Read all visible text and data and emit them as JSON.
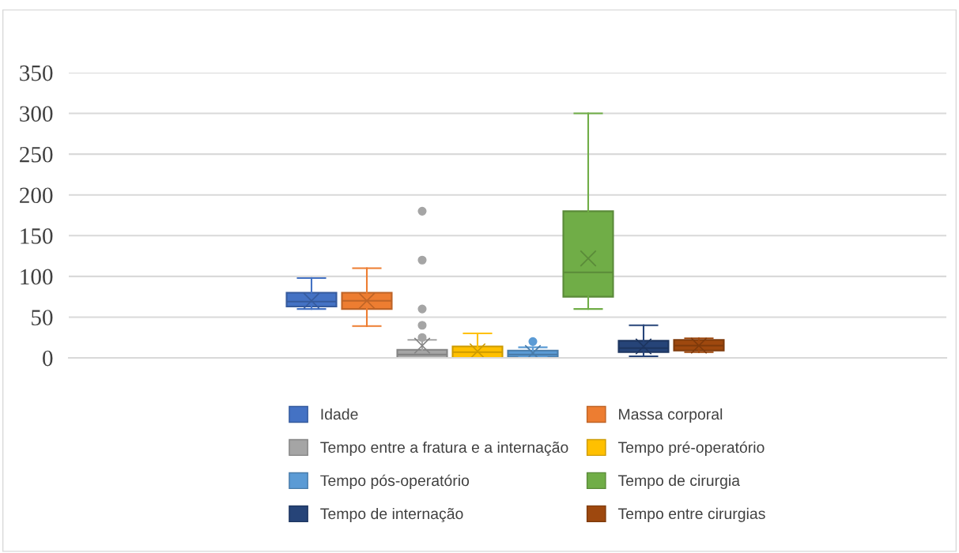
{
  "chart_data": {
    "type": "box",
    "categories": [
      null
    ],
    "ylim": [
      0,
      350
    ],
    "yticks": [
      0,
      50,
      100,
      150,
      200,
      250,
      300,
      350
    ],
    "grid": "y",
    "legend": "bottom",
    "series": [
      {
        "name": "Idade",
        "color": "#4472c4",
        "boxes": [
          {
            "low": 60,
            "q1": 63,
            "median": 69,
            "q3": 80,
            "high": 98,
            "mean": 70
          }
        ]
      },
      {
        "name": "Massa corporal",
        "color": "#ed7d31",
        "boxes": [
          {
            "low": 39,
            "q1": 60,
            "median": 70,
            "q3": 80,
            "high": 110,
            "mean": 70
          }
        ]
      },
      {
        "name": "Tempo entre a fratura e a internação",
        "color": "#a5a5a5",
        "boxes": [
          {
            "low": 0,
            "q1": 0,
            "median": 4,
            "q3": 10,
            "high": 22,
            "mean": 15,
            "outliers": [
              25,
              40,
              60,
              120,
              180
            ]
          }
        ]
      },
      {
        "name": "Tempo pré-operatório",
        "color": "#ffc000",
        "boxes": [
          {
            "low": 0,
            "q1": 0,
            "median": 7,
            "q3": 14,
            "high": 30,
            "mean": 8
          }
        ]
      },
      {
        "name": "Tempo pós-operatório",
        "color": "#5b9bd5",
        "boxes": [
          {
            "low": 1,
            "q1": 1,
            "median": 4,
            "q3": 9,
            "high": 13,
            "mean": 6,
            "outliers": [
              20
            ]
          }
        ]
      },
      {
        "name": "Tempo de cirurgia",
        "color": "#70ad47",
        "boxes": [
          {
            "low": 60,
            "q1": 75,
            "median": 105,
            "q3": 180,
            "high": 300,
            "mean": 122
          }
        ]
      },
      {
        "name": "Tempo de internação",
        "color": "#264478",
        "boxes": [
          {
            "low": 2,
            "q1": 7,
            "median": 12,
            "q3": 21,
            "high": 40,
            "mean": 14
          }
        ]
      },
      {
        "name": "Tempo entre cirurgias",
        "color": "#9e480e",
        "boxes": [
          {
            "low": 7,
            "q1": 9,
            "median": 15,
            "q3": 22,
            "high": 24,
            "mean": 15
          }
        ]
      }
    ]
  }
}
